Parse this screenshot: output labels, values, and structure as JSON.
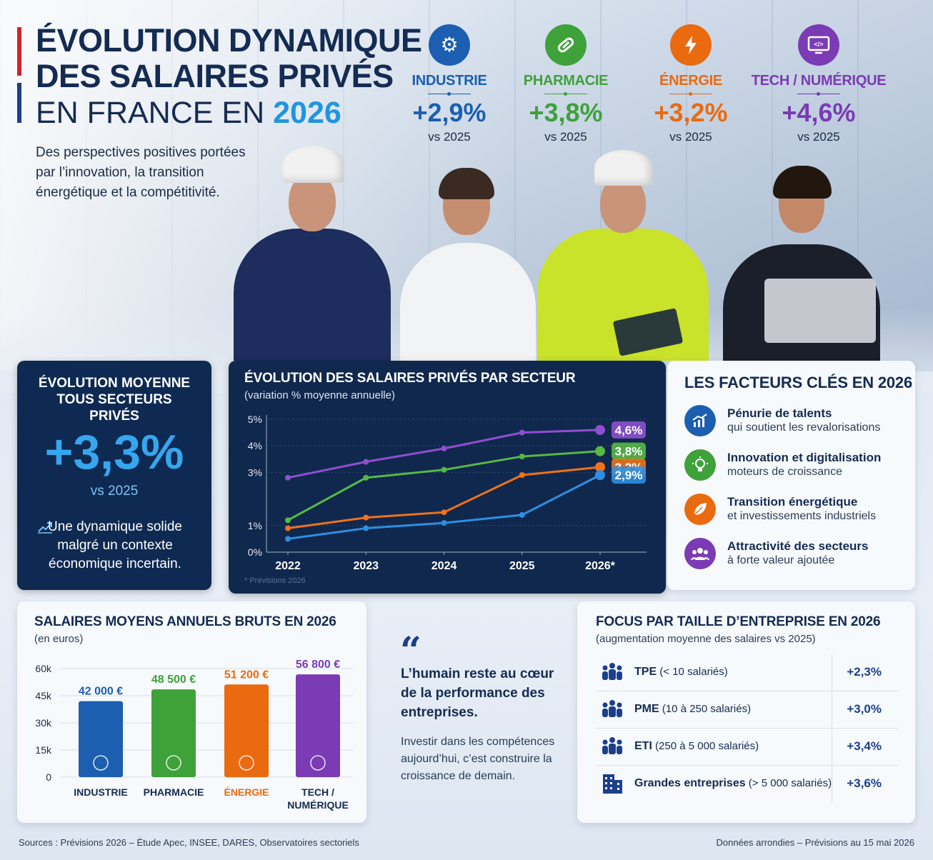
{
  "header": {
    "title_line1": "ÉVOLUTION DYNAMIQUE",
    "title_line2": "DES SALAIRES PRIVÉS",
    "title_line3_prefix": "EN FRANCE EN",
    "title_year": "2026",
    "subtitle": "Des perspectives positives portées par l’innovation, la transition énergétique et la compétitivité."
  },
  "sectors": [
    {
      "name": "INDUSTRIE",
      "pct": "+2,9%",
      "vs": "vs 2025",
      "color": "#1c5fb0",
      "icon": "gear-icon",
      "glyph": "⚙"
    },
    {
      "name": "PHARMACIE",
      "pct": "+3,8%",
      "vs": "vs 2025",
      "color": "#3fa13a",
      "icon": "pill-icon",
      "glyph": "💊"
    },
    {
      "name": "ÉNERGIE",
      "pct": "+3,2%",
      "vs": "vs 2025",
      "color": "#ea6a10",
      "icon": "lightning-icon",
      "glyph": "⚡"
    },
    {
      "name": "TECH / NUMÉRIQUE",
      "pct": "+4,6%",
      "vs": "vs 2025",
      "color": "#7a3bb5",
      "icon": "monitor-code-icon",
      "glyph": "</>"
    }
  ],
  "average": {
    "title": "ÉVOLUTION MOYENNE TOUS SECTEURS PRIVÉS",
    "pct": "+3,3%",
    "vs": "vs 2025",
    "text": "Une dynamique solide malgré un contexte économique incertain."
  },
  "chart_data": [
    {
      "type": "line",
      "title": "ÉVOLUTION DES SALAIRES PRIVÉS PAR SECTEUR",
      "subtitle": "(variation % moyenne annuelle)",
      "x": [
        "2022",
        "2023",
        "2024",
        "2025",
        "2026*"
      ],
      "y_ticks": [
        "0%",
        "1%",
        "3%",
        "4%",
        "5%"
      ],
      "ylim": [
        0,
        5
      ],
      "footnote": "* Prévisions 2026",
      "series": [
        {
          "name": "TECH / NUMÉRIQUE",
          "color": "#8e4fd0",
          "values": [
            2.8,
            3.4,
            3.9,
            4.5,
            4.6
          ],
          "end_label": "4,6%"
        },
        {
          "name": "PHARMACIE",
          "color": "#57b846",
          "values": [
            1.2,
            2.8,
            3.1,
            3.6,
            3.8
          ],
          "end_label": "3,8%"
        },
        {
          "name": "ÉNERGIE",
          "color": "#f07219",
          "values": [
            0.9,
            1.3,
            1.5,
            2.9,
            3.2
          ],
          "end_label": "3,2%"
        },
        {
          "name": "INDUSTRIE",
          "color": "#2e8fe0",
          "values": [
            0.5,
            0.9,
            1.1,
            1.4,
            2.9
          ],
          "end_label": "2,9%"
        }
      ]
    },
    {
      "type": "bar",
      "title": "SALAIRES MOYENS ANNUELS BRUTS EN 2026",
      "subtitle": "(en euros)",
      "y_ticks": [
        "0",
        "15k",
        "30k",
        "45k",
        "60k"
      ],
      "ylim": [
        0,
        60000
      ],
      "categories": [
        "INDUSTRIE",
        "PHARMACIE",
        "ÉNERGIE",
        "TECH / NUMÉRIQUE"
      ],
      "values": [
        42000,
        48500,
        51200,
        56800
      ],
      "labels": [
        "42 000 €",
        "48 500 €",
        "51 200 €",
        "56 800 €"
      ],
      "colors": [
        "#1c5fb0",
        "#3fa13a",
        "#ea6a10",
        "#7a3bb5"
      ]
    }
  ],
  "factors": {
    "title": "LES FACTEURS CLÉS EN 2026",
    "items": [
      {
        "title": "Pénurie de talents",
        "desc": "qui soutient les revalorisations",
        "color": "#1c5fb0",
        "icon": "chart-up-icon",
        "glyph": "📈"
      },
      {
        "title": "Innovation et digitalisation",
        "desc": "moteurs de croissance",
        "color": "#3fa13a",
        "icon": "lightbulb-icon",
        "glyph": "💡"
      },
      {
        "title": "Transition énergétique",
        "desc": "et investissements industriels",
        "color": "#ea6a10",
        "icon": "leaf-icon",
        "glyph": "🍃"
      },
      {
        "title": "Attractivité des secteurs",
        "desc": "à forte valeur ajoutée",
        "color": "#7a3bb5",
        "icon": "people-icon",
        "glyph": "👥"
      }
    ]
  },
  "quote": {
    "mark": "“",
    "main": "L’humain reste au cœur de la performance des entreprises.",
    "sub": "Investir dans les compétences aujourd’hui, c’est construire la croissance de demain."
  },
  "focus": {
    "title": "FOCUS PAR TAILLE D’ENTREPRISE EN 2026",
    "subtitle": "(augmentation moyenne des salaires vs 2025)",
    "rows": [
      {
        "name": "TPE",
        "detail": "(< 10 salariés)",
        "value": "+2,3%",
        "icon": "group-icon"
      },
      {
        "name": "PME",
        "detail": "(10 à 250 salariés)",
        "value": "+3,0%",
        "icon": "group-icon"
      },
      {
        "name": "ETI",
        "detail": "(250 à 5 000 salariés)",
        "value": "+3,4%",
        "icon": "group-icon"
      },
      {
        "name": "Grandes entreprises",
        "detail": "(> 5 000 salariés)",
        "value": "+3,6%",
        "icon": "building-icon"
      }
    ]
  },
  "footer": {
    "sources": "Sources : Prévisions 2026 – Étude Apec, INSEE, DARES, Observatoires sectoriels",
    "note": "Données arrondies – Prévisions au 15 mai 2026"
  }
}
